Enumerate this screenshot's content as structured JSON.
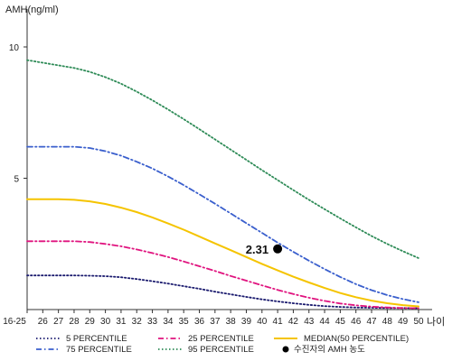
{
  "chart_data": {
    "type": "line",
    "ylabel": "AMH(ng/ml)",
    "xlabel": "나이",
    "x": [
      "16-25",
      "26",
      "27",
      "28",
      "29",
      "30",
      "31",
      "32",
      "33",
      "34",
      "35",
      "36",
      "37",
      "38",
      "39",
      "40",
      "41",
      "42",
      "43",
      "44",
      "45",
      "46",
      "47",
      "48",
      "49",
      "50"
    ],
    "ylim": [
      0,
      11
    ],
    "yticks": [
      5,
      10
    ],
    "grid": false,
    "legend_position": "bottom",
    "series": [
      {
        "name": "5 PERCENTILE",
        "color": "#1a1a6e",
        "dash": "dotted",
        "values": [
          1.3,
          1.3,
          1.3,
          1.3,
          1.29,
          1.27,
          1.23,
          1.16,
          1.08,
          0.99,
          0.89,
          0.79,
          0.68,
          0.58,
          0.48,
          0.39,
          0.31,
          0.24,
          0.18,
          0.13,
          0.1,
          0.08,
          0.07,
          0.06,
          0.06,
          0.05
        ]
      },
      {
        "name": "25 PERCENTILE",
        "color": "#e0147f",
        "dash": "dashdot",
        "values": [
          2.6,
          2.6,
          2.6,
          2.6,
          2.57,
          2.5,
          2.41,
          2.29,
          2.15,
          2.0,
          1.83,
          1.65,
          1.47,
          1.28,
          1.1,
          0.92,
          0.75,
          0.59,
          0.45,
          0.33,
          0.23,
          0.16,
          0.11,
          0.08,
          0.06,
          0.05
        ]
      },
      {
        "name": "MEDIAN(50 PERCENTILE)",
        "color": "#f5c400",
        "dash": "solid",
        "values": [
          4.2,
          4.2,
          4.2,
          4.18,
          4.12,
          4.02,
          3.88,
          3.71,
          3.51,
          3.28,
          3.04,
          2.78,
          2.52,
          2.26,
          2.0,
          1.74,
          1.49,
          1.25,
          1.03,
          0.82,
          0.63,
          0.47,
          0.34,
          0.24,
          0.17,
          0.12
        ]
      },
      {
        "name": "75 PERCENTILE",
        "color": "#3a5fcd",
        "dash": "dashdot",
        "values": [
          6.2,
          6.2,
          6.2,
          6.2,
          6.15,
          6.03,
          5.86,
          5.63,
          5.37,
          5.07,
          4.74,
          4.39,
          4.03,
          3.66,
          3.29,
          2.92,
          2.55,
          2.2,
          1.86,
          1.54,
          1.24,
          0.97,
          0.74,
          0.55,
          0.4,
          0.28
        ]
      },
      {
        "name": "95 PERCENTILE",
        "color": "#2e8b57",
        "dash": "dotted",
        "values": [
          9.5,
          9.4,
          9.3,
          9.2,
          9.05,
          8.85,
          8.6,
          8.3,
          7.97,
          7.62,
          7.25,
          6.87,
          6.48,
          6.09,
          5.7,
          5.31,
          4.93,
          4.55,
          4.18,
          3.82,
          3.47,
          3.13,
          2.8,
          2.5,
          2.22,
          1.96
        ]
      }
    ],
    "marker": {
      "name": "수진자의 AMH 농도",
      "x": "41",
      "y": 2.31,
      "label": "2.31",
      "color": "#000000"
    }
  }
}
